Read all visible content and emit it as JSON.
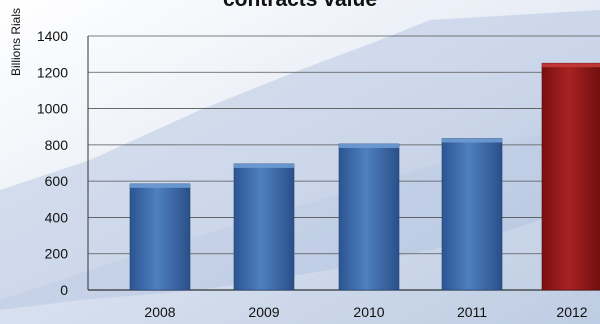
{
  "chart_data": {
    "type": "bar",
    "title": "contracts value",
    "ylabel": "Billions Rials",
    "xlabel": "",
    "categories": [
      "2008",
      "2009",
      "2010",
      "2011",
      "2012"
    ],
    "values": [
      585,
      695,
      805,
      835,
      1250
    ],
    "ylim": [
      0,
      1400
    ],
    "yticks": [
      0,
      200,
      400,
      600,
      800,
      1000,
      1200,
      1400
    ],
    "grid": true,
    "legend": "none",
    "colors": {
      "bar": "#3a68a8",
      "highlight_bar": "#8e1515",
      "highlight_category": "2012"
    }
  }
}
